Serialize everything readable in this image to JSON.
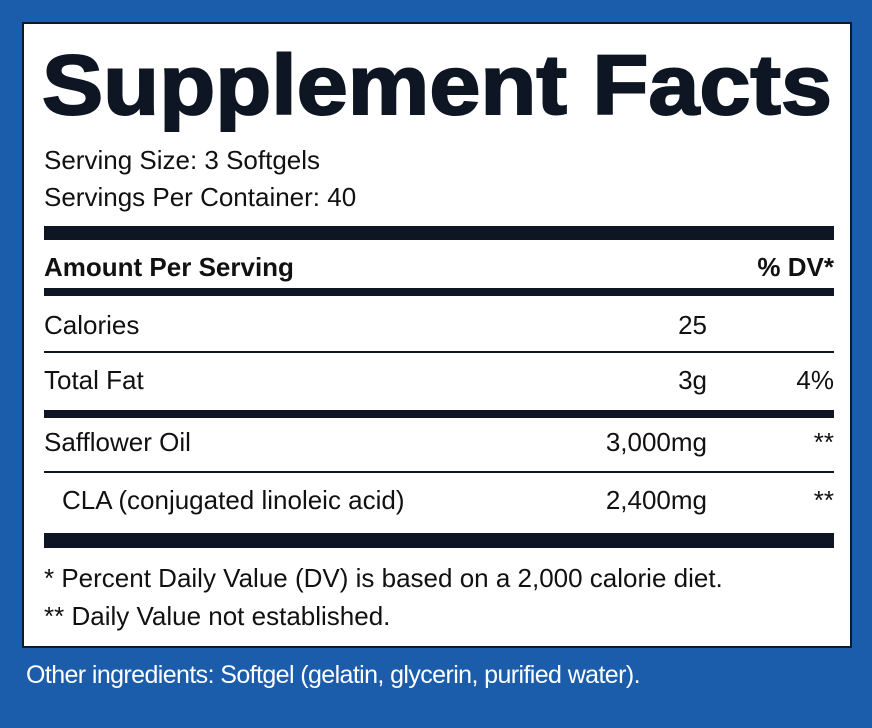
{
  "title": "Supplement Facts",
  "serving_size": "Serving Size: 3 Softgels",
  "servings_per_container": "Servings Per Container: 40",
  "table": {
    "header": {
      "amount_per_serving": "Amount Per Serving",
      "dv": "% DV*"
    },
    "rows": [
      {
        "name": "Calories",
        "amount": "25"
      },
      {
        "name": "Total Fat",
        "amount": "3g",
        "dv": "4%"
      },
      {
        "name": "Safflower Oil",
        "amount": "3,000mg",
        "dv": "**"
      },
      {
        "name": "CLA (conjugated linoleic acid)",
        "amount": "2,400mg",
        "dv": "**"
      }
    ]
  },
  "footnotes": [
    "* Percent Daily Value (DV) is based on a 2,000 calorie diet.",
    "** Daily Value not established."
  ],
  "other_ingredients": "Other ingredients: Softgel (gelatin, glycerin, purified water)."
}
